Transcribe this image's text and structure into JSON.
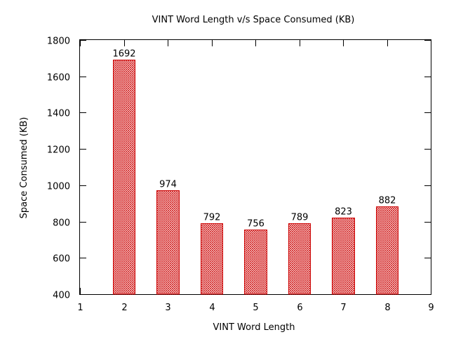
{
  "chart_data": {
    "type": "bar",
    "title": "VINT Word Length v/s Space Consumed (KB)",
    "xlabel": "VINT Word Length",
    "ylabel": "Space Consumed (KB)",
    "x": [
      2,
      3,
      4,
      5,
      6,
      7,
      8
    ],
    "values": [
      1692,
      974,
      792,
      756,
      789,
      823,
      882
    ],
    "data_labels": [
      "1692",
      "974",
      "792",
      "756",
      "789",
      "823",
      "882"
    ],
    "xlim": [
      1,
      9
    ],
    "ylim": [
      400,
      1800
    ],
    "xticks": [
      1,
      2,
      3,
      4,
      5,
      6,
      7,
      8,
      9
    ],
    "yticks": [
      400,
      600,
      800,
      1000,
      1200,
      1400,
      1600,
      1800
    ],
    "xtick_labels": [
      "1",
      "2",
      "3",
      "4",
      "5",
      "6",
      "7",
      "8",
      "9"
    ],
    "ytick_labels": [
      "400",
      "600",
      "800",
      "1000",
      "1200",
      "1400",
      "1600",
      "1800"
    ],
    "bar_width": 0.5,
    "grid": false,
    "bar_color": "#cc0000",
    "bar_fill_color": "#e8a3a3",
    "fill_pattern": "crosshatch"
  }
}
